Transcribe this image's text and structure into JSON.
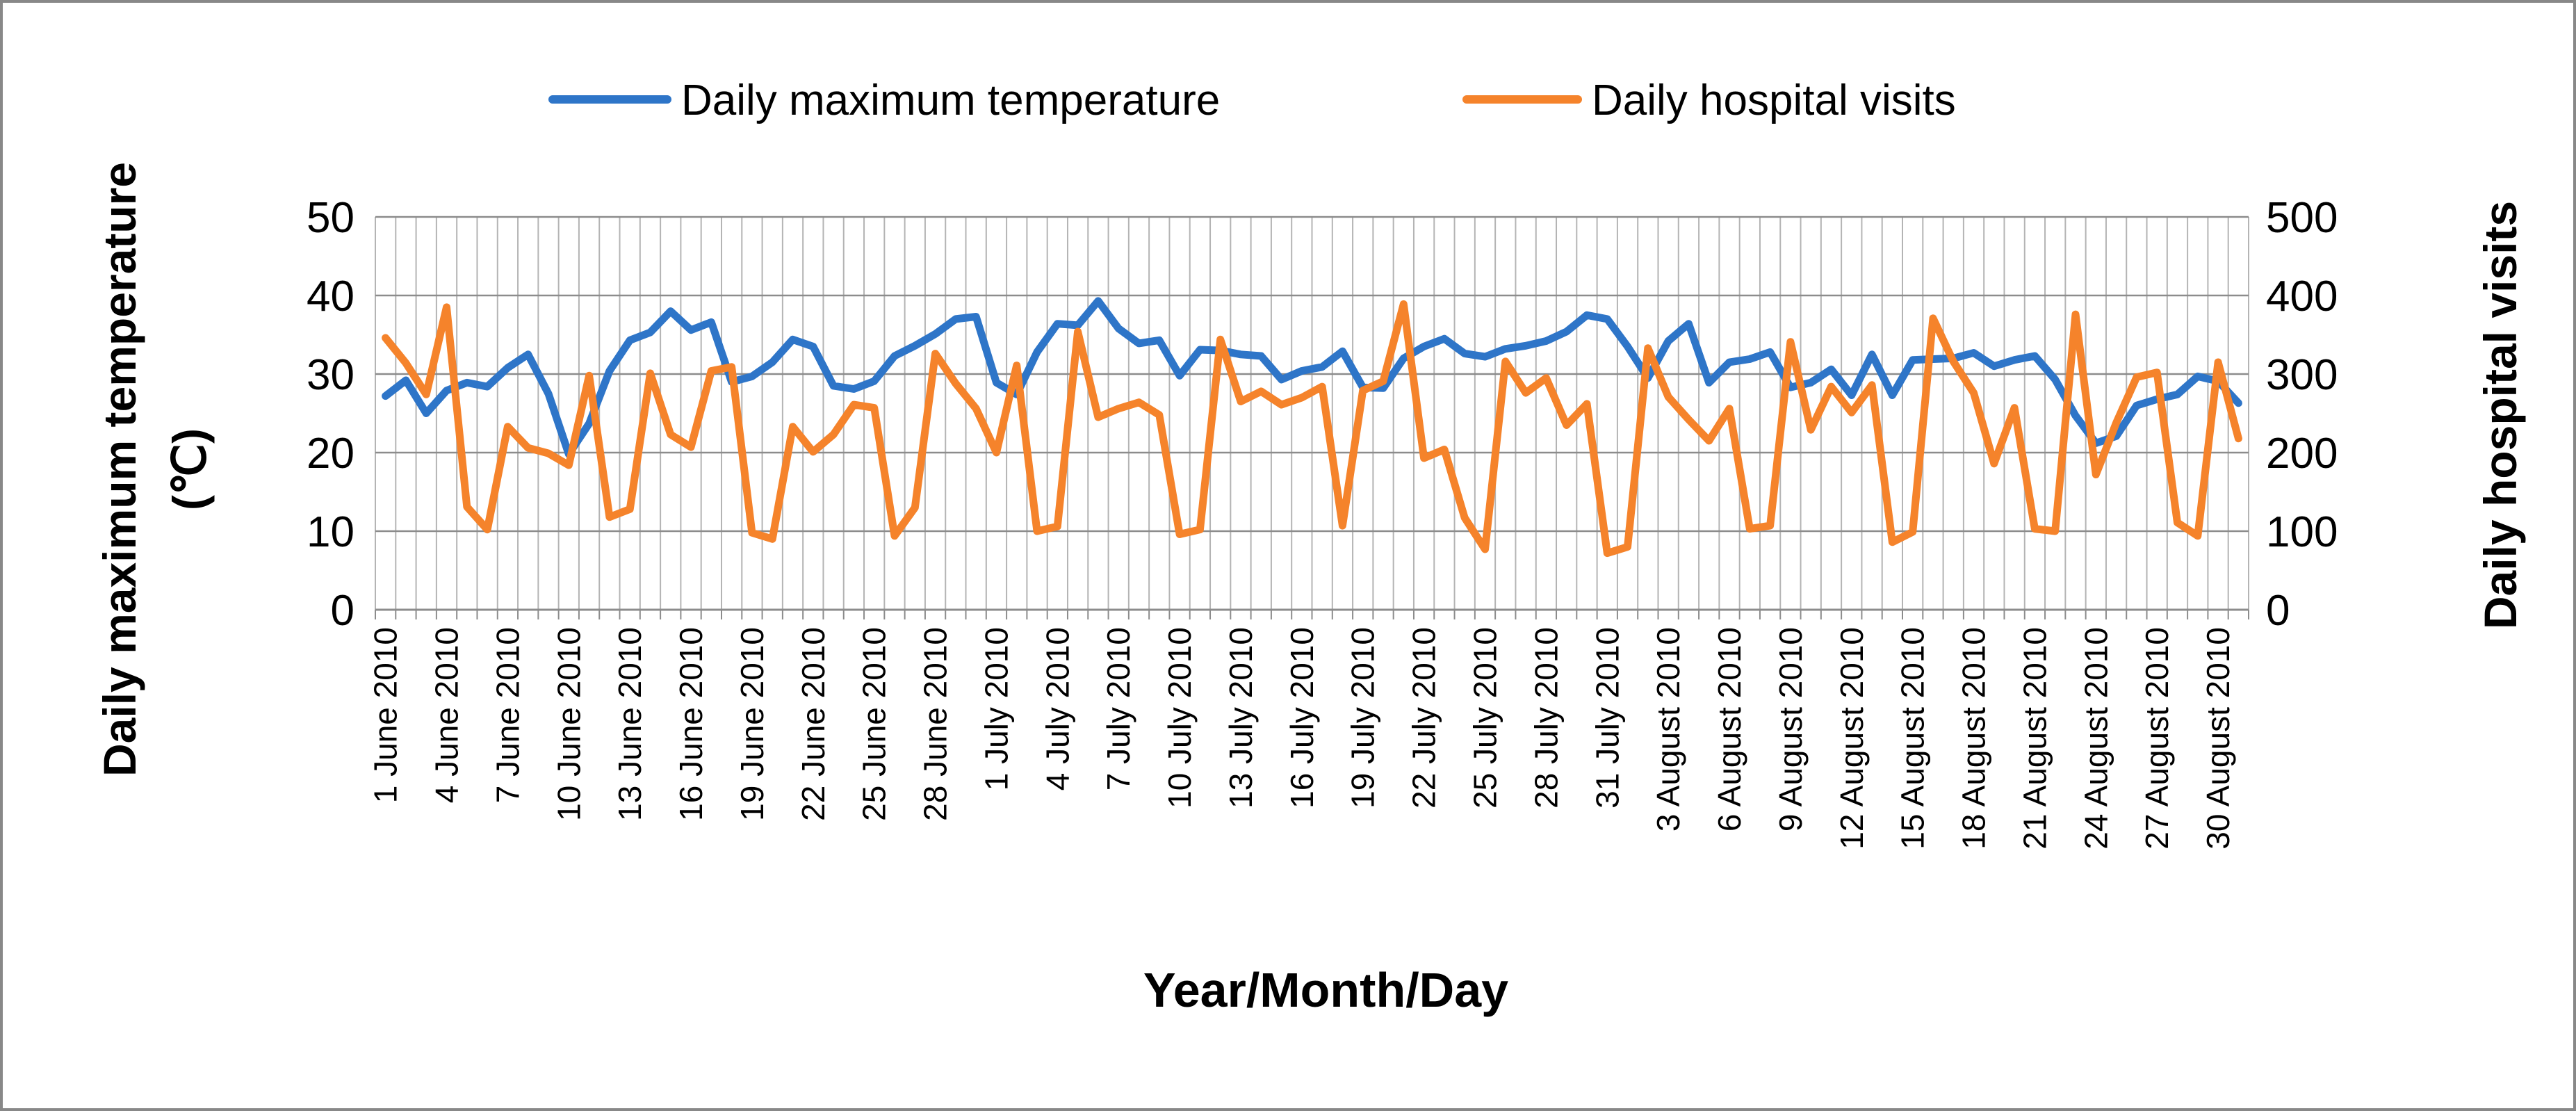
{
  "chart_data": {
    "type": "line",
    "title": "",
    "xlabel": "Year/Month/Day",
    "ylabel_left": "Daily maximum temperature (℃)",
    "ylabel_right": "Daily hospital visits",
    "ylim_left": [
      0,
      50
    ],
    "ylim_right": [
      0,
      500
    ],
    "yticks_left": [
      0,
      10,
      20,
      30,
      40,
      50
    ],
    "yticks_right": [
      0,
      100,
      200,
      300,
      400,
      500
    ],
    "grid": "vertical and horizontal",
    "legend_position": "top-center",
    "x_tick_labels": [
      "1 June 2010",
      "4 June 2010",
      "7 June 2010",
      "10 June 2010",
      "13 June 2010",
      "16 June 2010",
      "19 June 2010",
      "22 June 2010",
      "25 June 2010",
      "28 June 2010",
      "1 July 2010",
      "4 July 2010",
      "7 July 2010",
      "10 July 2010",
      "13 July 2010",
      "16 July 2010",
      "19 July 2010",
      "22 July 2010",
      "25 July 2010",
      "28 July 2010",
      "31 July 2010",
      "3 August 2010",
      "6 August 2010",
      "9 August 2010",
      "12 August 2010",
      "15 August 2010",
      "18 August 2010",
      "21 August 2010",
      "24 August 2010",
      "27 August 2010",
      "30 August 2010"
    ],
    "series": [
      {
        "name": "Daily maximum temperature",
        "axis": "left",
        "color": "#2E75C8",
        "values": [
          27.2,
          29.2,
          25.0,
          27.9,
          28.9,
          28.4,
          30.8,
          32.5,
          27.5,
          19.8,
          23.7,
          30.4,
          34.3,
          35.3,
          38.0,
          35.6,
          36.6,
          29.0,
          29.7,
          31.5,
          34.4,
          33.5,
          28.5,
          28.1,
          29.1,
          32.3,
          33.6,
          35.1,
          37.0,
          37.3,
          28.9,
          27.4,
          32.8,
          36.4,
          36.2,
          39.3,
          35.8,
          33.9,
          34.3,
          29.8,
          33.1,
          33.0,
          32.5,
          32.3,
          29.3,
          30.4,
          30.9,
          32.9,
          28.3,
          28.2,
          32.0,
          33.5,
          34.5,
          32.6,
          32.2,
          33.2,
          33.6,
          34.2,
          35.4,
          37.5,
          37.0,
          33.5,
          29.5,
          34.2,
          36.4,
          28.9,
          31.5,
          31.9,
          32.8,
          28.3,
          28.9,
          30.6,
          27.3,
          32.5,
          27.3,
          31.8,
          31.9,
          32.0,
          32.7,
          31.0,
          31.8,
          32.3,
          29.3,
          24.7,
          21.2,
          22.1,
          26.0,
          26.8,
          27.4,
          29.7,
          29.1,
          26.3
        ]
      },
      {
        "name": "Daily hospital visits",
        "axis": "right",
        "color": "#F5832B",
        "values": [
          346,
          314,
          274,
          385,
          131,
          102,
          233,
          206,
          199,
          184,
          298,
          118,
          128,
          301,
          223,
          207,
          304,
          309,
          98,
          90,
          233,
          201,
          223,
          261,
          257,
          94,
          130,
          326,
          288,
          256,
          200,
          311,
          100,
          106,
          354,
          245,
          256,
          264,
          248,
          96,
          102,
          344,
          265,
          278,
          261,
          270,
          284,
          107,
          279,
          291,
          389,
          193,
          204,
          117,
          77,
          316,
          276,
          295,
          235,
          262,
          72,
          80,
          333,
          271,
          242,
          215,
          256,
          103,
          107,
          341,
          229,
          284,
          251,
          286,
          86,
          99,
          371,
          316,
          276,
          186,
          257,
          103,
          100,
          376,
          172,
          238,
          296,
          302,
          111,
          94,
          315,
          218
        ]
      }
    ]
  }
}
